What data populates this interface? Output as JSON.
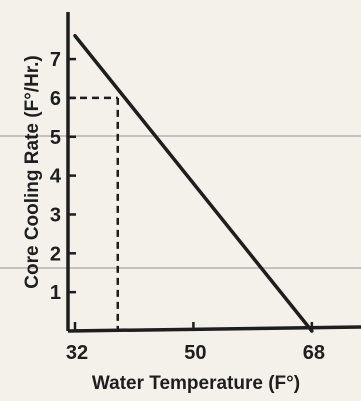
{
  "chart_data": {
    "type": "line",
    "title": "",
    "xlabel": "Water Temperature (F°)",
    "ylabel": "Core Cooling Rate (F°/Hr.)",
    "xlim": [
      32,
      70
    ],
    "ylim": [
      0,
      7.8
    ],
    "x_ticks": [
      32,
      50,
      68
    ],
    "y_ticks": [
      1,
      2,
      3,
      4,
      5,
      6,
      7
    ],
    "series": [
      {
        "x": [
          32,
          68
        ],
        "y": [
          7.6,
          0
        ]
      }
    ],
    "reference_point": {
      "x": 38.5,
      "y": 6
    },
    "grid": false,
    "colors": {
      "line": "#1e1e1e",
      "axis": "#1e1e1e",
      "background": "#f3f1ea",
      "stray_rule": "#9a9a9a"
    }
  }
}
